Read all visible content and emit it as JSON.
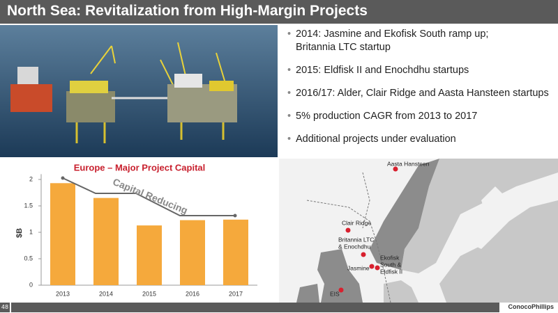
{
  "header": {
    "title": "North Sea: Revitalization from High-Margin Projects"
  },
  "bullets": [
    [
      "2014: Jasmine and Ekofisk South ramp up;",
      "Britannia LTC startup"
    ],
    [
      "2015: Eldfisk II and Enochdhu startups"
    ],
    [
      "2016/17: Alder, Clair Ridge and Aasta Hansteen startups"
    ],
    [
      "5% production CAGR from 2013 to 2017"
    ],
    [
      "Additional projects under evaluation"
    ]
  ],
  "chart_data": {
    "type": "bar",
    "title": "Europe – Major Project Capital",
    "y_label": "$B",
    "annotation": "Capital Reducing",
    "categories": [
      "2013",
      "2014",
      "2015",
      "2016",
      "2017"
    ],
    "values": [
      1.93,
      1.65,
      1.13,
      1.23,
      1.24
    ],
    "color": "#f5a93c",
    "ylim": [
      0,
      2.1
    ],
    "yticks": [
      0,
      0.5,
      1,
      1.5,
      2
    ]
  },
  "map": {
    "labels": [
      [
        "Aasta Hansteen"
      ],
      [
        "Clair Ridge"
      ],
      [
        "Britannia LTC",
        "& Enochdhu"
      ],
      [
        "Jasmine"
      ],
      [
        "Ekofisk",
        "South &",
        "Eldfisk II"
      ],
      [
        "EIS"
      ]
    ]
  },
  "footer": {
    "page": "48",
    "logo": "ConocoPhillips"
  }
}
